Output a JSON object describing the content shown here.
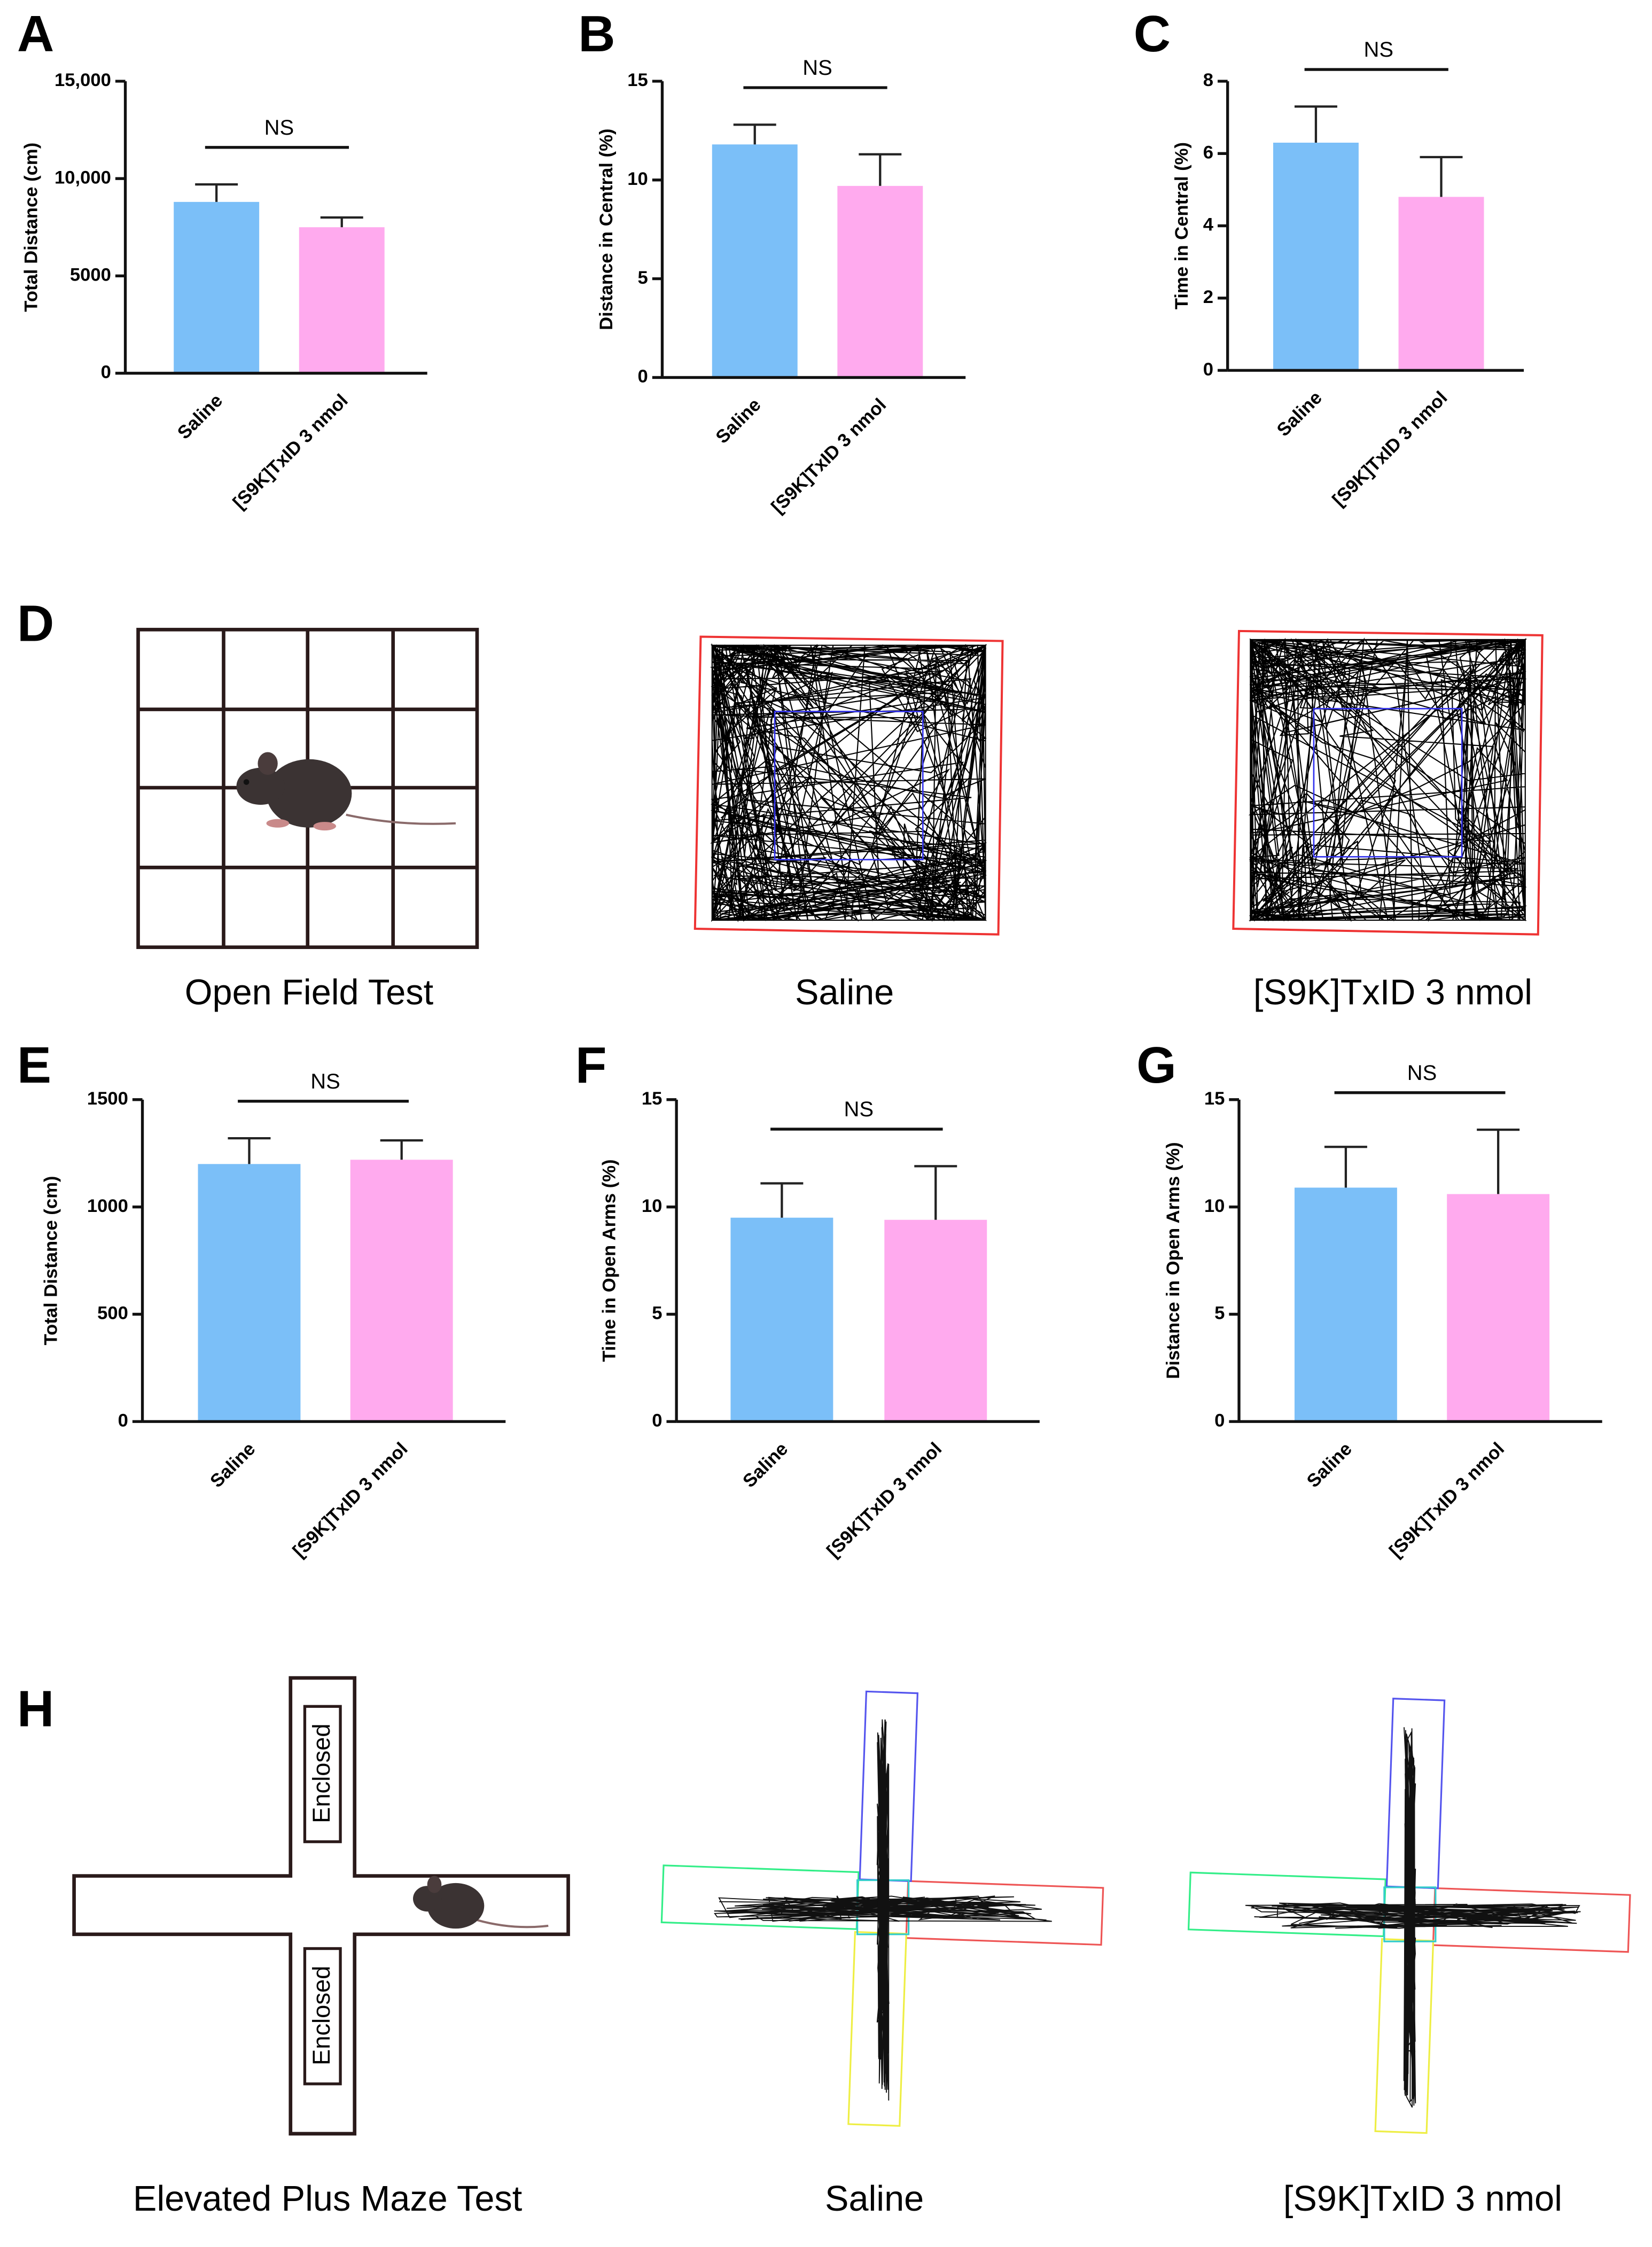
{
  "chart_data": [
    {
      "type": "bar",
      "panel": "A",
      "ylabel": "Total Distance (cm)",
      "categories": [
        "Saline",
        "[S9K]TxID 3 nmol"
      ],
      "values": [
        8800,
        7500
      ],
      "errors": [
        900,
        500
      ],
      "colors": [
        "#7bbff8",
        "#ffaaee"
      ],
      "ylim": [
        0,
        15000
      ],
      "yticks": [
        0,
        5000,
        {
          "value": 10000,
          "label": "10,000"
        },
        {
          "value": 15000,
          "label": "15,000"
        }
      ],
      "annotation": "NS"
    },
    {
      "type": "bar",
      "panel": "B",
      "ylabel": "Distance in Central (%)",
      "categories": [
        "Saline",
        "[S9K]TxID 3 nmol"
      ],
      "values": [
        11.8,
        9.7
      ],
      "errors": [
        1.0,
        1.6
      ],
      "colors": [
        "#7bbff8",
        "#ffaaee"
      ],
      "ylim": [
        0,
        15
      ],
      "yticks": [
        0,
        5,
        10,
        15
      ],
      "annotation": "NS"
    },
    {
      "type": "bar",
      "panel": "C",
      "ylabel": "Time in Central (%)",
      "categories": [
        "Saline",
        "[S9K]TxID 3 nmol"
      ],
      "values": [
        6.3,
        4.8
      ],
      "errors": [
        1.0,
        1.1
      ],
      "colors": [
        "#7bbff8",
        "#ffaaee"
      ],
      "ylim": [
        0,
        8
      ],
      "yticks": [
        0,
        2,
        4,
        6,
        8
      ],
      "annotation": "NS"
    },
    {
      "type": "bar",
      "panel": "E",
      "ylabel": "Total Distance (cm)",
      "categories": [
        "Saline",
        "[S9K]TxID 3 nmol"
      ],
      "values": [
        1200,
        1220
      ],
      "errors": [
        120,
        90
      ],
      "colors": [
        "#7bbff8",
        "#ffaaee"
      ],
      "ylim": [
        0,
        1500
      ],
      "yticks": [
        0,
        500,
        1000,
        1500
      ],
      "annotation": "NS"
    },
    {
      "type": "bar",
      "panel": "F",
      "ylabel": "Time in  Open Arms (%)",
      "categories": [
        "Saline",
        "[S9K]TxID 3 nmol"
      ],
      "values": [
        9.5,
        9.4
      ],
      "errors": [
        1.6,
        2.5
      ],
      "colors": [
        "#7bbff8",
        "#ffaaee"
      ],
      "ylim": [
        0,
        15
      ],
      "yticks": [
        0,
        5,
        10,
        15
      ],
      "annotation": "NS"
    },
    {
      "type": "bar",
      "panel": "G",
      "ylabel": "Distance in Open Arms (%)",
      "categories": [
        "Saline",
        "[S9K]TxID 3 nmol"
      ],
      "values": [
        10.9,
        10.6
      ],
      "errors": [
        1.9,
        3.0
      ],
      "colors": [
        "#7bbff8",
        "#ffaaee"
      ],
      "ylim": [
        0,
        15
      ],
      "yticks": [
        0,
        5,
        10,
        15
      ],
      "annotation": "NS"
    }
  ],
  "figure": {
    "open_field": {
      "panel": "D",
      "captions": [
        "Open Field Test",
        "Saline",
        "[S9K]TxID 3 nmol"
      ]
    },
    "plus_maze": {
      "panel": "H",
      "captions": [
        "Elevated Plus Maze Test",
        "Saline",
        "[S9K]TxID 3 nmol"
      ],
      "arm_labels": [
        "Enclosed",
        "Enclosed"
      ]
    }
  }
}
